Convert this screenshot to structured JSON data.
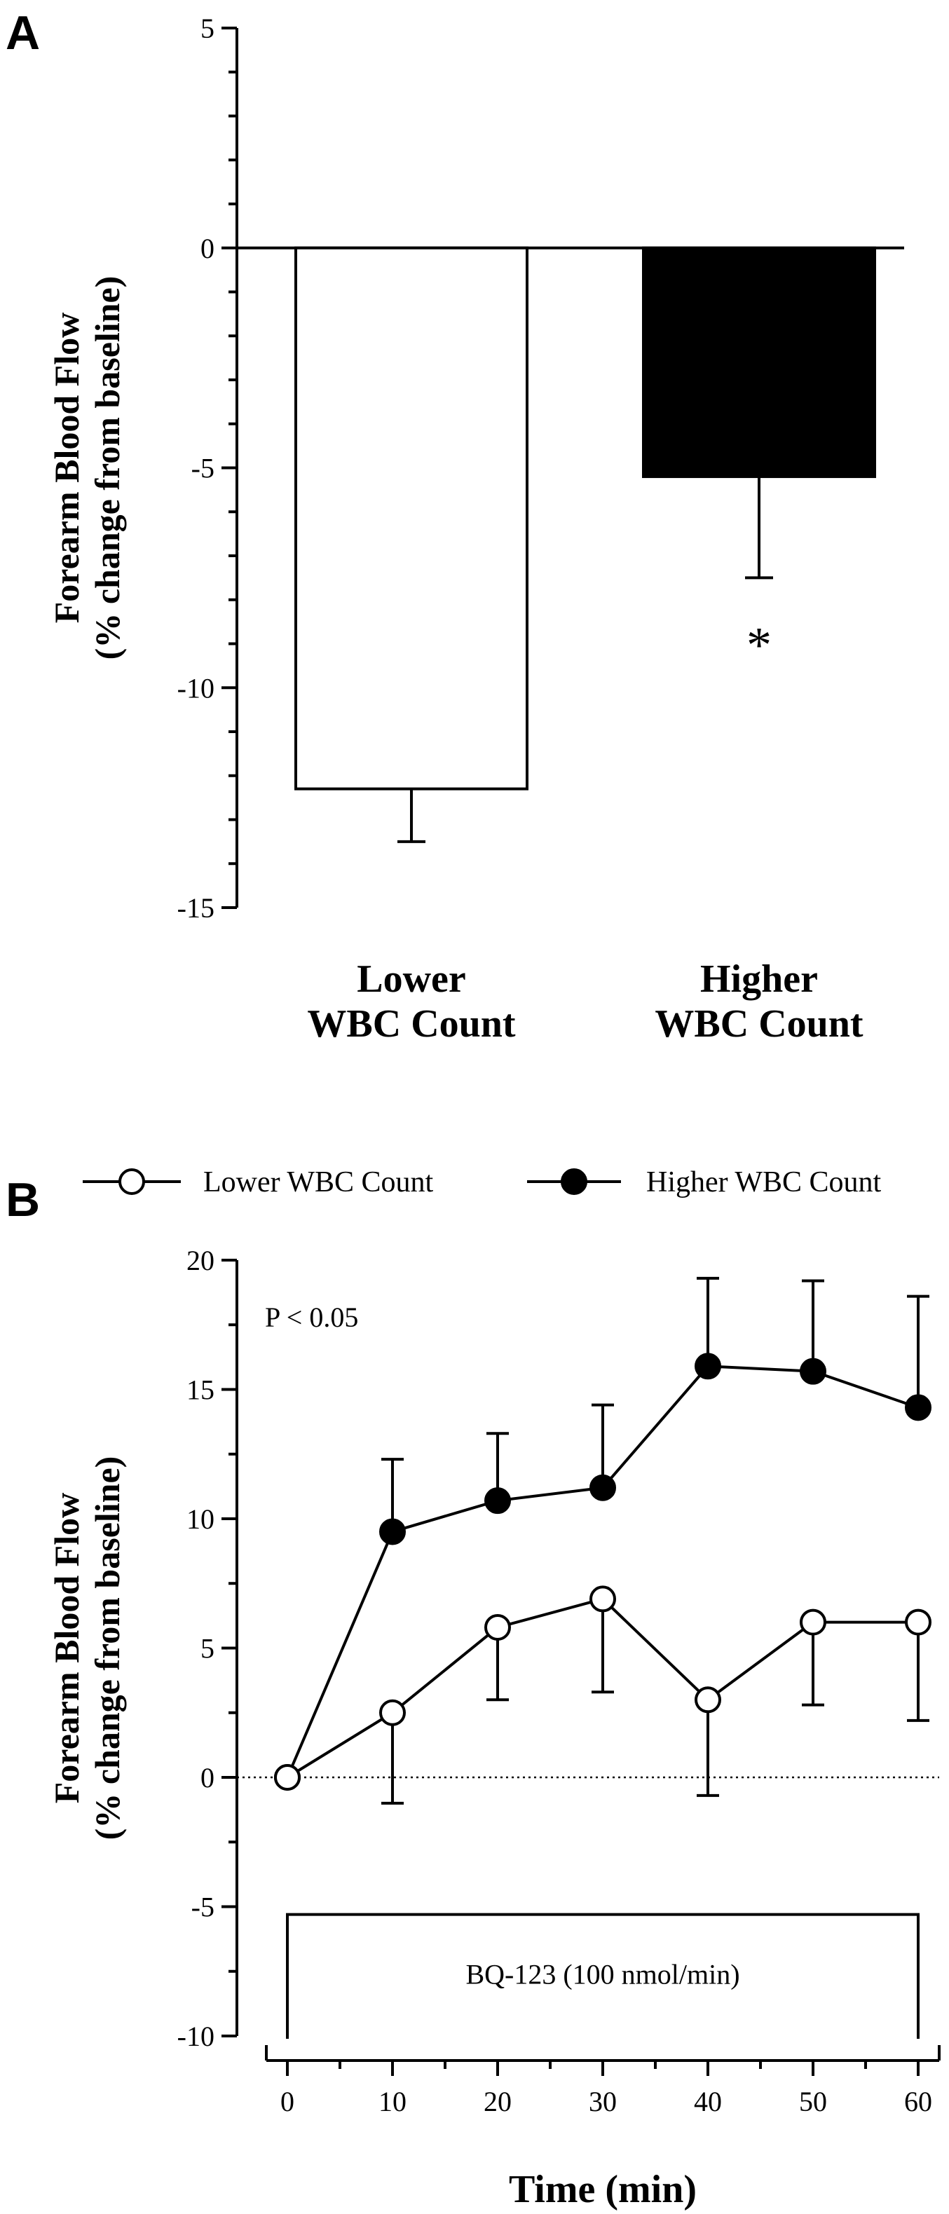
{
  "chart_data": [
    {
      "panel": "A",
      "type": "bar",
      "ylabel": [
        "Forearm Blood Flow",
        "(% change from baseline)"
      ],
      "ylim": [
        -15,
        5
      ],
      "yticks": [
        5,
        0,
        -5,
        -10,
        -15
      ],
      "categories": [
        [
          "Lower",
          "WBC Count"
        ],
        [
          "Higher",
          "WBC Count"
        ]
      ],
      "values": [
        -12.3,
        -5.2
      ],
      "errors": [
        1.2,
        2.3
      ],
      "fills": [
        "#ffffff",
        "#000000"
      ],
      "significance": [
        "",
        "*"
      ]
    },
    {
      "panel": "B",
      "type": "line",
      "xlabel": "Time (min)",
      "ylabel": [
        "Forearm Blood Flow",
        "(% change from baseline)"
      ],
      "xlim": [
        -2,
        62
      ],
      "ylim": [
        -10,
        20
      ],
      "xticks": [
        0,
        10,
        20,
        30,
        40,
        50,
        60
      ],
      "yticks": [
        20,
        15,
        10,
        5,
        0,
        -5,
        -10
      ],
      "x": [
        0,
        10,
        20,
        30,
        40,
        50,
        60
      ],
      "series": [
        {
          "name": "Lower WBC Count",
          "marker": "open-circle",
          "values": [
            0,
            2.5,
            5.8,
            6.9,
            3.0,
            6.0,
            6.0
          ],
          "errors_down": [
            0,
            3.5,
            2.8,
            3.6,
            3.7,
            3.2,
            3.8
          ]
        },
        {
          "name": "Higher WBC Count",
          "marker": "filled-circle",
          "values": [
            0,
            9.5,
            10.7,
            11.2,
            15.9,
            15.7,
            14.3
          ],
          "errors_up": [
            0,
            2.8,
            2.6,
            3.2,
            3.4,
            3.5,
            4.3
          ]
        }
      ],
      "annotation": "P < 0.05",
      "infusion_label": "BQ-123 (100 nmol/min)",
      "infusion_range": [
        0,
        60
      ],
      "zero_line": "dotted"
    }
  ],
  "panels": {
    "a_letter": "A",
    "b_letter": "B"
  }
}
